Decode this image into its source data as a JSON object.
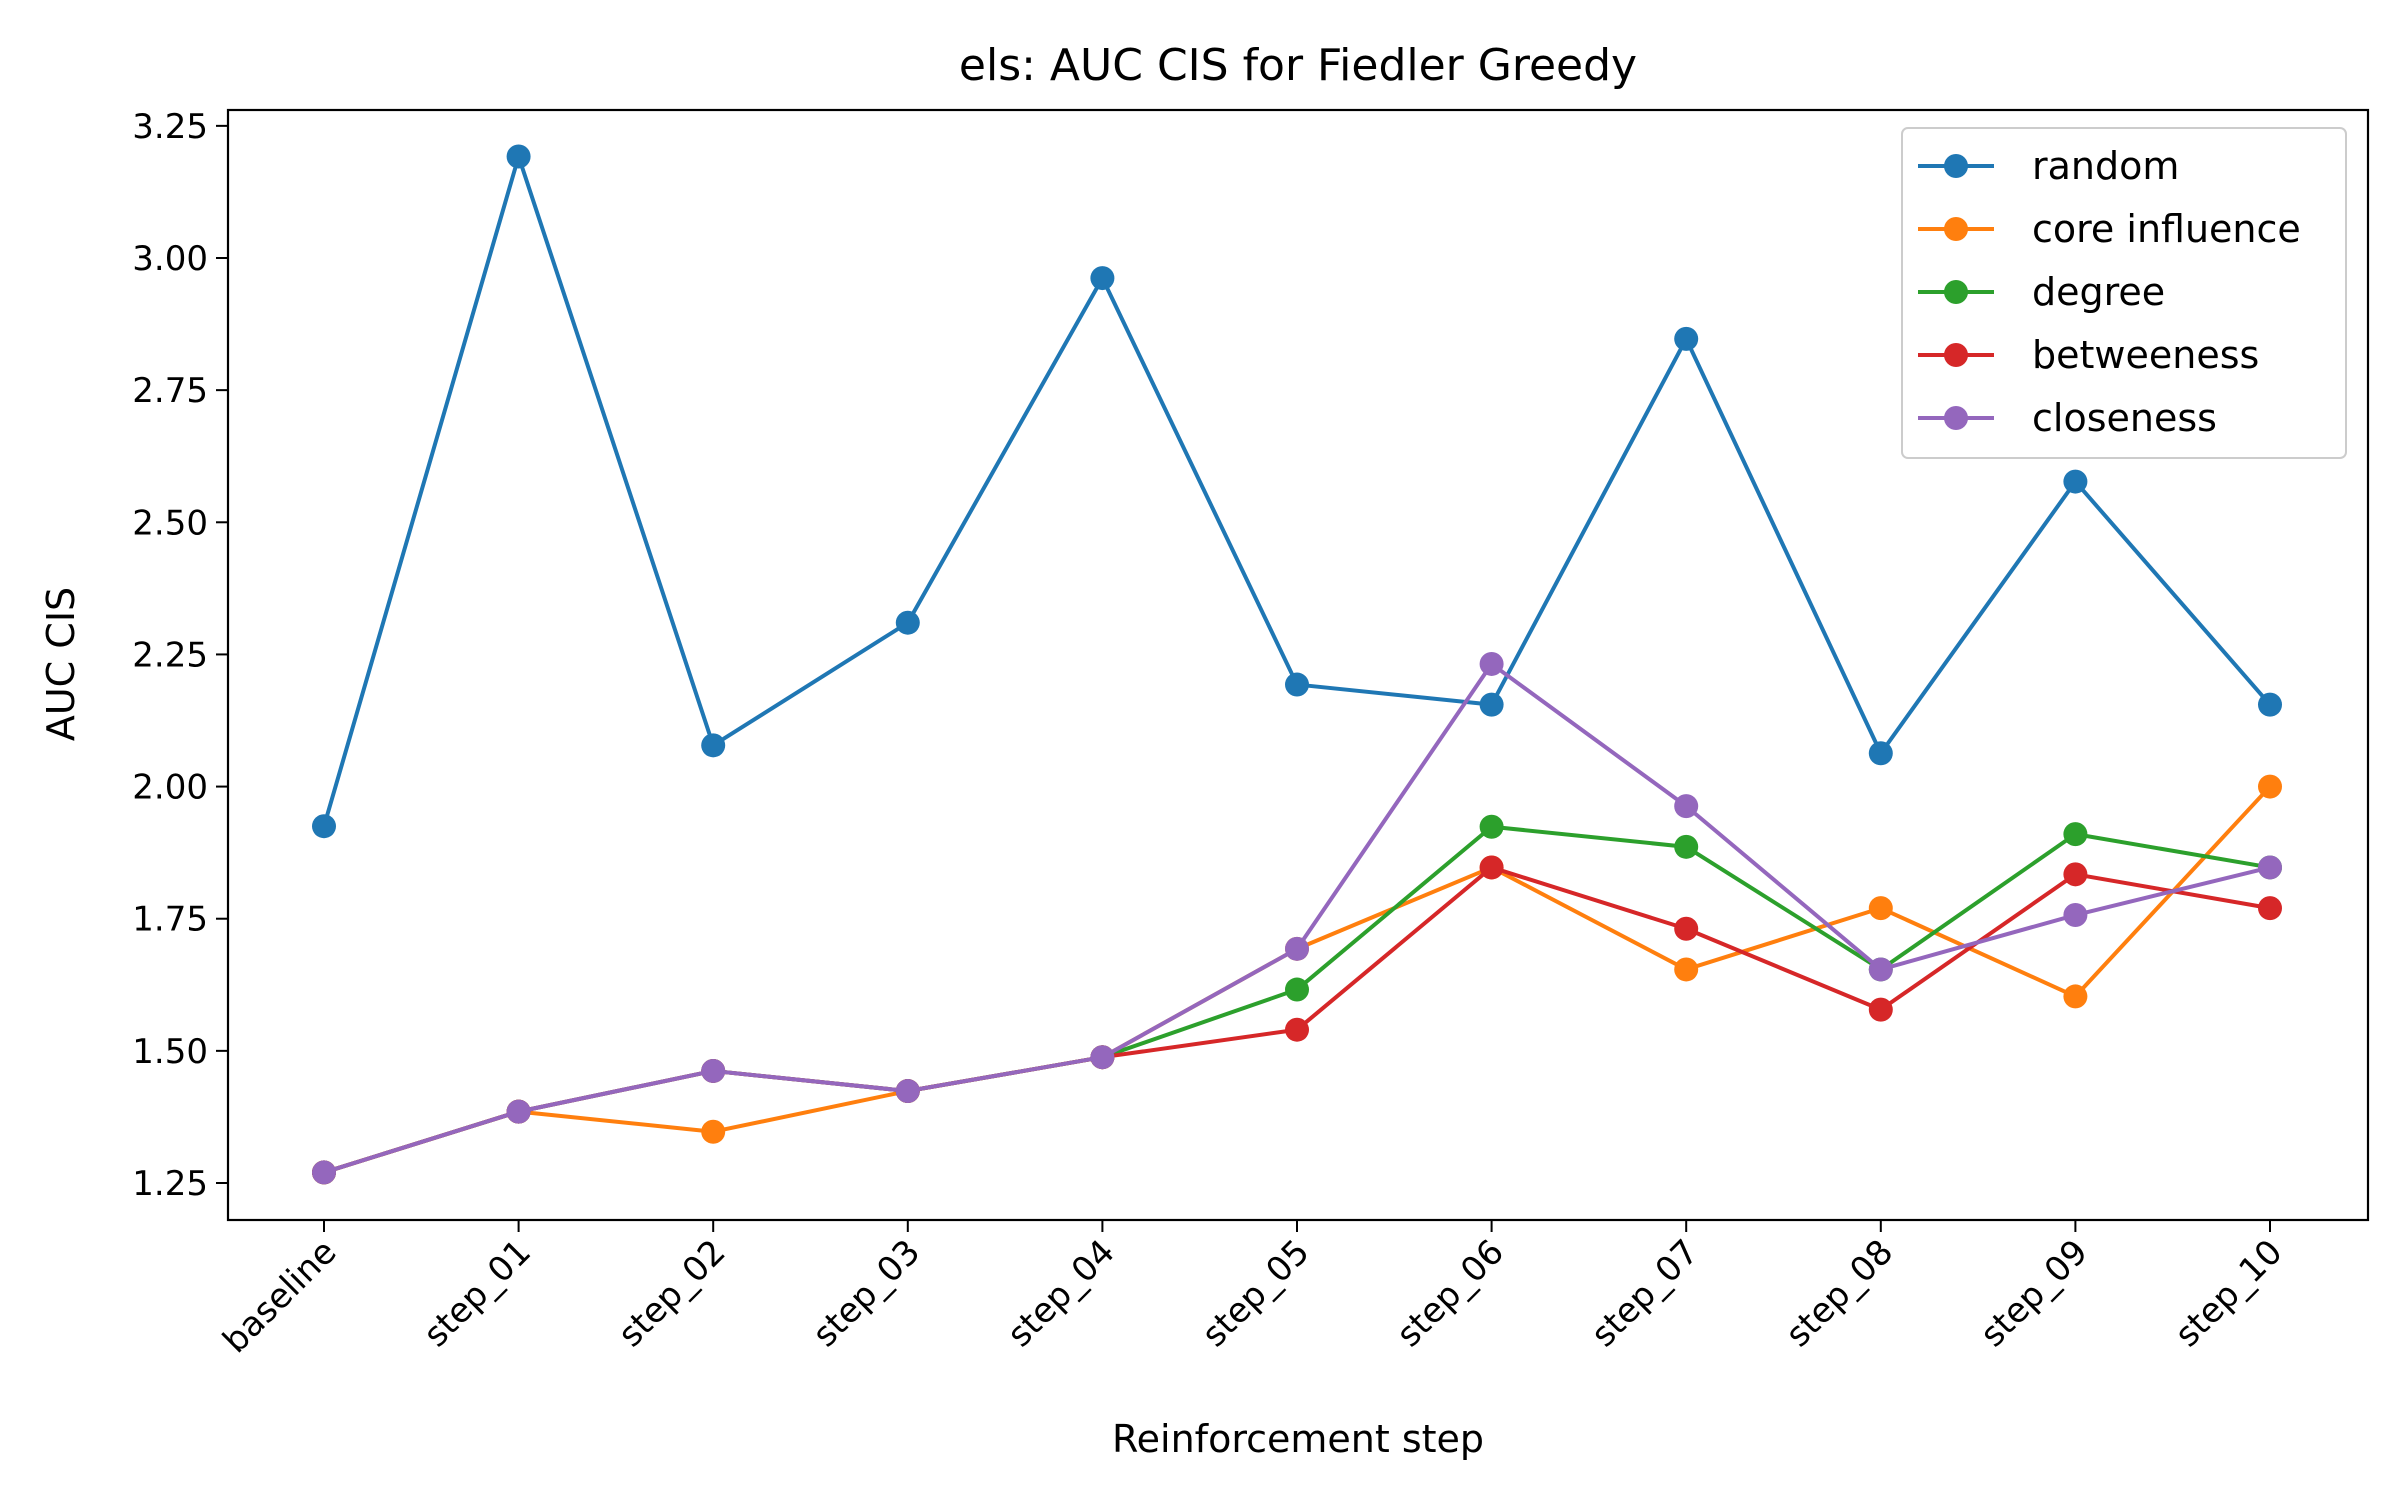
{
  "chart_data": {
    "type": "line",
    "title": "els: AUC CIS for Fiedler Greedy",
    "xlabel": "Reinforcement step",
    "ylabel": "AUC CIS",
    "categories": [
      "baseline",
      "step_01",
      "step_02",
      "step_03",
      "step_04",
      "step_05",
      "step_06",
      "step_07",
      "step_08",
      "step_09",
      "step_10"
    ],
    "ylim": [
      1.18,
      3.28
    ],
    "yticks": [
      1.25,
      1.5,
      1.75,
      2.0,
      2.25,
      2.5,
      2.75,
      3.0,
      3.25
    ],
    "ytick_labels": [
      "1.25",
      "1.50",
      "1.75",
      "2.00",
      "2.25",
      "2.50",
      "2.75",
      "3.00",
      "3.25"
    ],
    "grid": false,
    "legend_position": "top-right",
    "marker": "circle",
    "series": [
      {
        "name": "random",
        "color": "#1f77b4",
        "values": [
          1.925,
          3.192,
          2.078,
          2.31,
          2.962,
          2.193,
          2.155,
          2.847,
          2.063,
          2.577,
          2.155
        ]
      },
      {
        "name": "core influence",
        "color": "#ff7f0e",
        "values": [
          1.27,
          1.385,
          1.347,
          1.424,
          1.488,
          1.693,
          1.847,
          1.654,
          1.77,
          1.603,
          2.0
        ]
      },
      {
        "name": "degree",
        "color": "#2ca02c",
        "values": [
          1.27,
          1.385,
          1.462,
          1.424,
          1.488,
          1.616,
          1.924,
          1.886,
          1.654,
          1.91,
          1.847
        ]
      },
      {
        "name": "betweeness",
        "color": "#d62728",
        "values": [
          1.27,
          1.385,
          1.462,
          1.424,
          1.488,
          1.54,
          1.847,
          1.731,
          1.578,
          1.834,
          1.77
        ]
      },
      {
        "name": "closeness",
        "color": "#9467bd",
        "values": [
          1.27,
          1.385,
          1.462,
          1.424,
          1.488,
          1.693,
          2.232,
          1.963,
          1.654,
          1.757,
          1.847
        ]
      }
    ]
  }
}
